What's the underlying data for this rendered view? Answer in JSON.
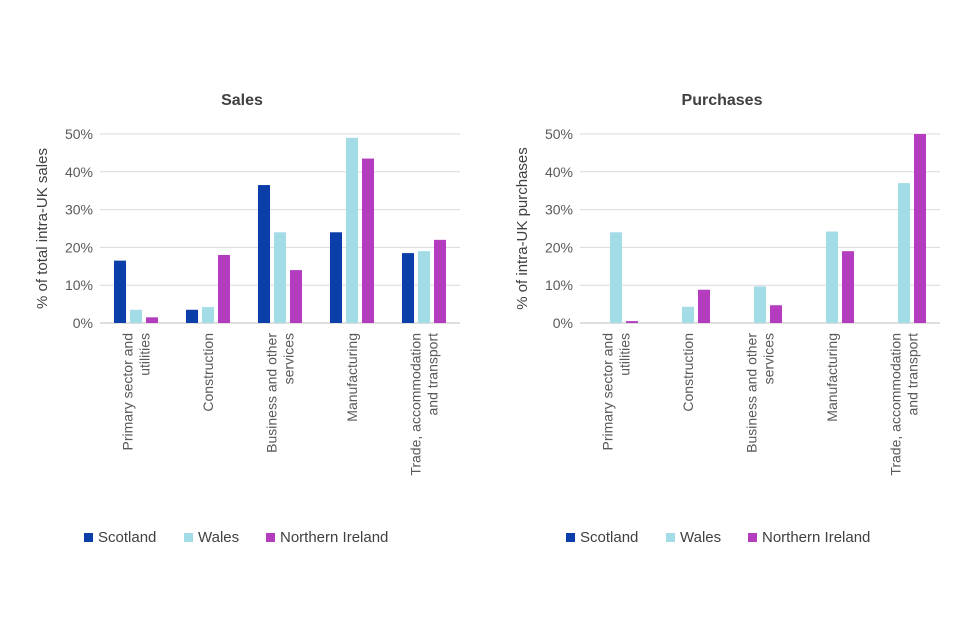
{
  "chart_data": [
    {
      "type": "bar",
      "title": "Sales",
      "ylabel": "% of total intra-UK sales",
      "xlabel": "",
      "ylim": [
        0,
        50
      ],
      "yticks": [
        0,
        10,
        20,
        30,
        40,
        50
      ],
      "tick_suffix": "%",
      "categories": [
        [
          "Primary sector and",
          "utilities"
        ],
        [
          "Construction"
        ],
        [
          "Business and other",
          "services"
        ],
        [
          "Manufacturing"
        ],
        [
          "Trade, accommodation",
          "and transport"
        ]
      ],
      "series": [
        {
          "name": "Scotland",
          "color": "#0b3ea8",
          "values": [
            16.5,
            3.5,
            36.5,
            24,
            18.5
          ]
        },
        {
          "name": "Wales",
          "color": "#a3dbe6",
          "values": [
            3.5,
            4.2,
            24,
            49,
            19
          ]
        },
        {
          "name": "Northern Ireland",
          "color": "#b43cbf",
          "values": [
            1.5,
            18,
            14,
            43.5,
            22
          ]
        }
      ],
      "legend": "bottom"
    },
    {
      "type": "bar",
      "title": "Purchases",
      "ylabel": "% of intra-UK purchases",
      "xlabel": "",
      "ylim": [
        0,
        50
      ],
      "yticks": [
        0,
        10,
        20,
        30,
        40,
        50
      ],
      "tick_suffix": "%",
      "categories": [
        [
          "Primary sector and",
          "utilities"
        ],
        [
          "Construction"
        ],
        [
          "Business and other",
          "services"
        ],
        [
          "Manufacturing"
        ],
        [
          "Trade, accommodation",
          "and transport"
        ]
      ],
      "series": [
        {
          "name": "Scotland",
          "color": "#0b3ea8",
          "values": [
            0,
            0,
            0,
            0,
            0
          ]
        },
        {
          "name": "Wales",
          "color": "#a3dbe6",
          "values": [
            24,
            4.3,
            9.7,
            24.2,
            37
          ]
        },
        {
          "name": "Northern Ireland",
          "color": "#b43cbf",
          "values": [
            0.5,
            8.8,
            4.7,
            19,
            50
          ]
        }
      ],
      "legend": "bottom"
    }
  ]
}
